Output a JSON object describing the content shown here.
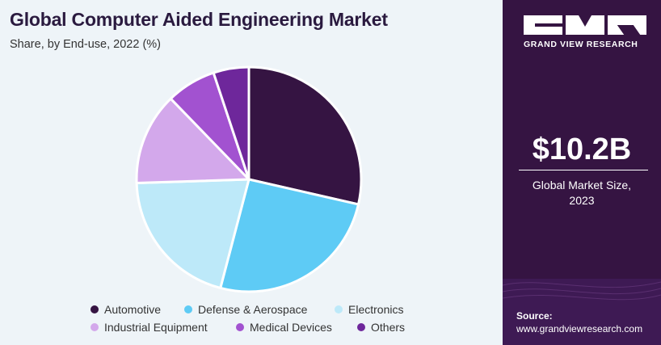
{
  "header": {
    "title": "Global Computer Aided Engineering Market",
    "subtitle": "Share, by End-use, 2022 (%)"
  },
  "brand": {
    "logo_text": "GRAND VIEW RESEARCH"
  },
  "market": {
    "value": "$10.2B",
    "label_line1": "Global Market Size,",
    "label_line2": "2023"
  },
  "source": {
    "label": "Source:",
    "url": "www.grandviewresearch.com"
  },
  "chart_data": {
    "type": "pie",
    "title": "Global Computer Aided Engineering Market",
    "subtitle": "Share, by End-use, 2022 (%)",
    "legend_position": "bottom",
    "slices": [
      {
        "label": "Automotive",
        "value": 28,
        "color": "#351442"
      },
      {
        "label": "Defense & Aerospace",
        "value": 25,
        "color": "#5ecbf5"
      },
      {
        "label": "Electronics",
        "value": 20,
        "color": "#bde9f9"
      },
      {
        "label": "Industrial Equipment",
        "value": 13,
        "color": "#d3a8eb"
      },
      {
        "label": "Medical Devices",
        "value": 7,
        "color": "#a252d0"
      },
      {
        "label": "Others",
        "value": 5,
        "color": "#6e279b"
      }
    ]
  }
}
